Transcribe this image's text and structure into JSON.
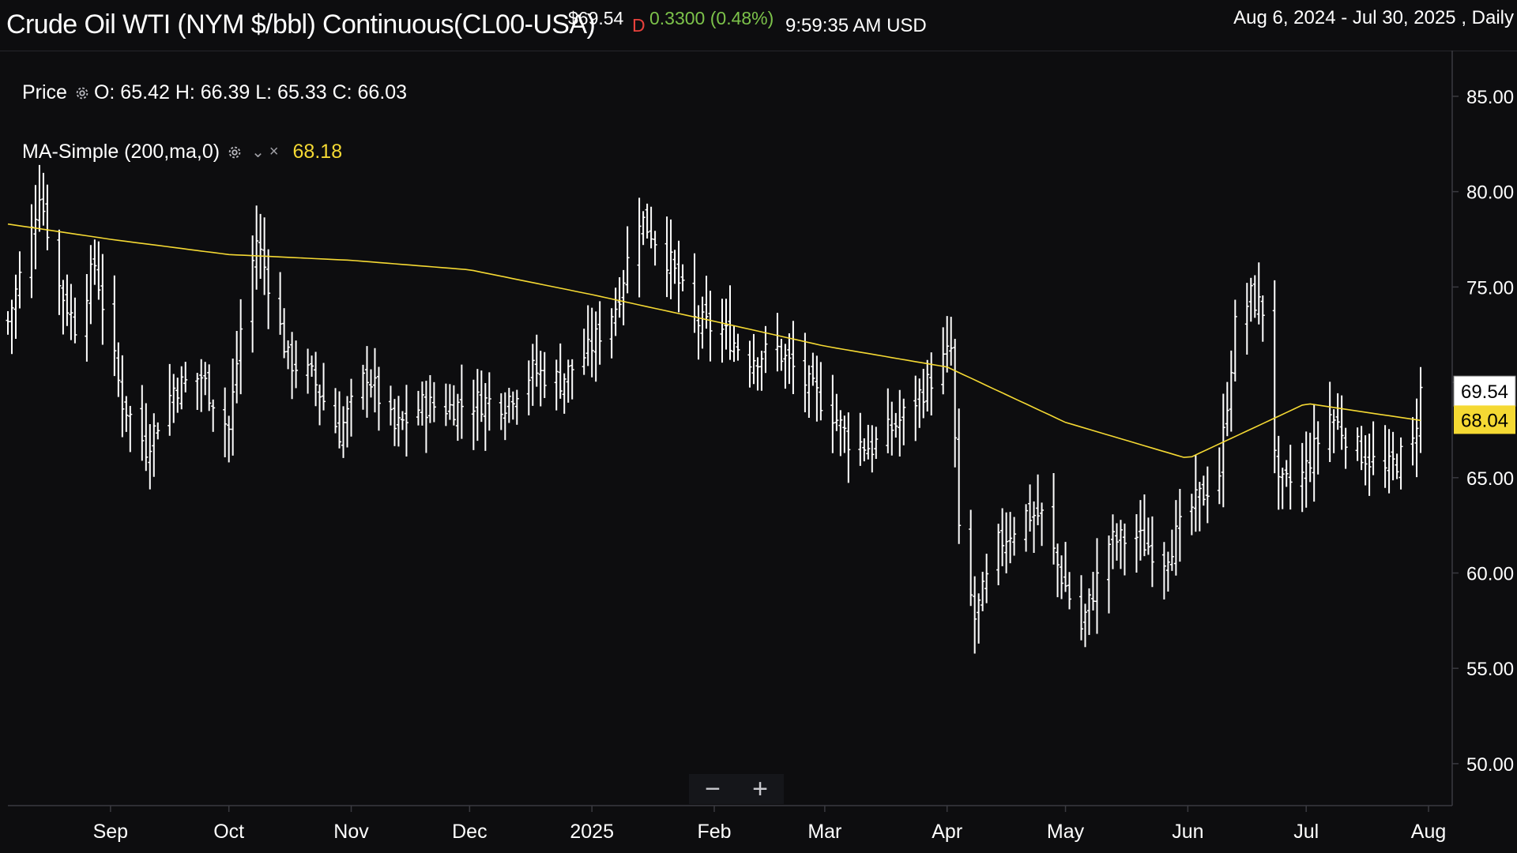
{
  "header": {
    "title": "Crude Oil WTI (NYM $/bbl) Continuous(CL00-USA)",
    "price": "$69.54",
    "flag": "D",
    "change": "0.3300 (0.48%)",
    "time": "9:59:35 AM USD",
    "range": "Aug 6, 2024 - Jul 30, 2025 , Daily"
  },
  "legend": {
    "price_label": "Price",
    "ohlc": "O: 65.42 H: 66.39 L: 65.33 C: 66.03",
    "ma_label": "MA-Simple (200,ma,0)",
    "ma_value": "68.18",
    "ma_color": "#f5d933"
  },
  "zoom": {
    "minus": "−",
    "plus": "+"
  },
  "chart_data": {
    "type": "ohlc",
    "y_ticks": [
      "85.00",
      "80.00",
      "75.00",
      "70.00",
      "65.00",
      "60.00",
      "55.00",
      "50.00"
    ],
    "ylim": [
      47.8,
      87.4
    ],
    "x_ticks": [
      {
        "label": "Sep",
        "date": "2024-09-01"
      },
      {
        "label": "Oct",
        "date": "2024-10-01"
      },
      {
        "label": "Nov",
        "date": "2024-11-01"
      },
      {
        "label": "Dec",
        "date": "2024-12-01"
      },
      {
        "label": "2025",
        "date": "2025-01-01"
      },
      {
        "label": "Feb",
        "date": "2025-02-01"
      },
      {
        "label": "Mar",
        "date": "2025-03-01"
      },
      {
        "label": "Apr",
        "date": "2025-04-01"
      },
      {
        "label": "May",
        "date": "2025-05-01"
      },
      {
        "label": "Jun",
        "date": "2025-06-01"
      },
      {
        "label": "Jul",
        "date": "2025-07-01"
      },
      {
        "label": "Aug",
        "date": "2025-08-01"
      }
    ],
    "xlim": [
      "2024-08-04",
      "2025-08-07"
    ],
    "last_price": "69.54",
    "ma_last": "68.04",
    "colors": {
      "bars": "#ffffff",
      "ma": "#f5d933",
      "grid_axis": "#3a3a40"
    },
    "price_points": [
      [
        "2024-08-06",
        73.2
      ],
      [
        "2024-08-12",
        77.9
      ],
      [
        "2024-08-14",
        80.1
      ],
      [
        "2024-08-19",
        75.0
      ],
      [
        "2024-08-23",
        73.0
      ],
      [
        "2024-08-28",
        76.2
      ],
      [
        "2024-09-04",
        69.0
      ],
      [
        "2024-09-10",
        66.6
      ],
      [
        "2024-09-17",
        69.7
      ],
      [
        "2024-09-24",
        70.3
      ],
      [
        "2024-10-01",
        67.5
      ],
      [
        "2024-10-04",
        72.8
      ],
      [
        "2024-10-08",
        77.5
      ],
      [
        "2024-10-11",
        75.3
      ],
      [
        "2024-10-16",
        71.2
      ],
      [
        "2024-10-22",
        70.3
      ],
      [
        "2024-10-29",
        67.4
      ],
      [
        "2024-11-05",
        70.5
      ],
      [
        "2024-11-12",
        67.5
      ],
      [
        "2024-11-19",
        68.8
      ],
      [
        "2024-11-26",
        68.7
      ],
      [
        "2024-12-03",
        69.0
      ],
      [
        "2024-12-10",
        69.0
      ],
      [
        "2024-12-17",
        70.6
      ],
      [
        "2024-12-24",
        70.1
      ],
      [
        "2024-12-31",
        71.6
      ],
      [
        "2025-01-07",
        74.0
      ],
      [
        "2025-01-13",
        78.7
      ],
      [
        "2025-01-16",
        77.9
      ],
      [
        "2025-01-21",
        76.2
      ],
      [
        "2025-01-27",
        73.2
      ],
      [
        "2025-02-03",
        72.7
      ],
      [
        "2025-02-10",
        71.3
      ],
      [
        "2025-02-17",
        71.7
      ],
      [
        "2025-02-24",
        70.0
      ],
      [
        "2025-03-03",
        68.4
      ],
      [
        "2025-03-07",
        67.0
      ],
      [
        "2025-03-13",
        66.6
      ],
      [
        "2025-03-20",
        68.0
      ],
      [
        "2025-03-27",
        69.9
      ],
      [
        "2025-04-02",
        71.7
      ],
      [
        "2025-04-04",
        61.9
      ],
      [
        "2025-04-08",
        57.6
      ],
      [
        "2025-04-14",
        61.5
      ],
      [
        "2025-04-21",
        63.1
      ],
      [
        "2025-04-25",
        63.0
      ],
      [
        "2025-04-29",
        60.4
      ],
      [
        "2025-05-05",
        57.1
      ],
      [
        "2025-05-12",
        61.6
      ],
      [
        "2025-05-19",
        61.9
      ],
      [
        "2025-05-26",
        60.8
      ],
      [
        "2025-06-02",
        63.4
      ],
      [
        "2025-06-09",
        65.3
      ],
      [
        "2025-06-13",
        72.9
      ],
      [
        "2025-06-17",
        74.5
      ],
      [
        "2025-06-20",
        73.8
      ],
      [
        "2025-06-24",
        64.4
      ],
      [
        "2025-06-30",
        65.1
      ],
      [
        "2025-07-07",
        68.3
      ],
      [
        "2025-07-14",
        66.5
      ],
      [
        "2025-07-21",
        65.3
      ],
      [
        "2025-07-28",
        66.7
      ],
      [
        "2025-07-30",
        69.5
      ]
    ],
    "ma_points": [
      [
        "2024-08-06",
        78.3
      ],
      [
        "2024-09-01",
        77.5
      ],
      [
        "2024-10-01",
        76.7
      ],
      [
        "2024-11-01",
        76.4
      ],
      [
        "2024-12-01",
        75.9
      ],
      [
        "2025-01-01",
        74.6
      ],
      [
        "2025-02-01",
        73.2
      ],
      [
        "2025-03-01",
        71.9
      ],
      [
        "2025-04-01",
        70.8
      ],
      [
        "2025-05-01",
        67.9
      ],
      [
        "2025-06-01",
        66.0
      ],
      [
        "2025-07-01",
        68.9
      ],
      [
        "2025-07-30",
        68.0
      ]
    ]
  }
}
